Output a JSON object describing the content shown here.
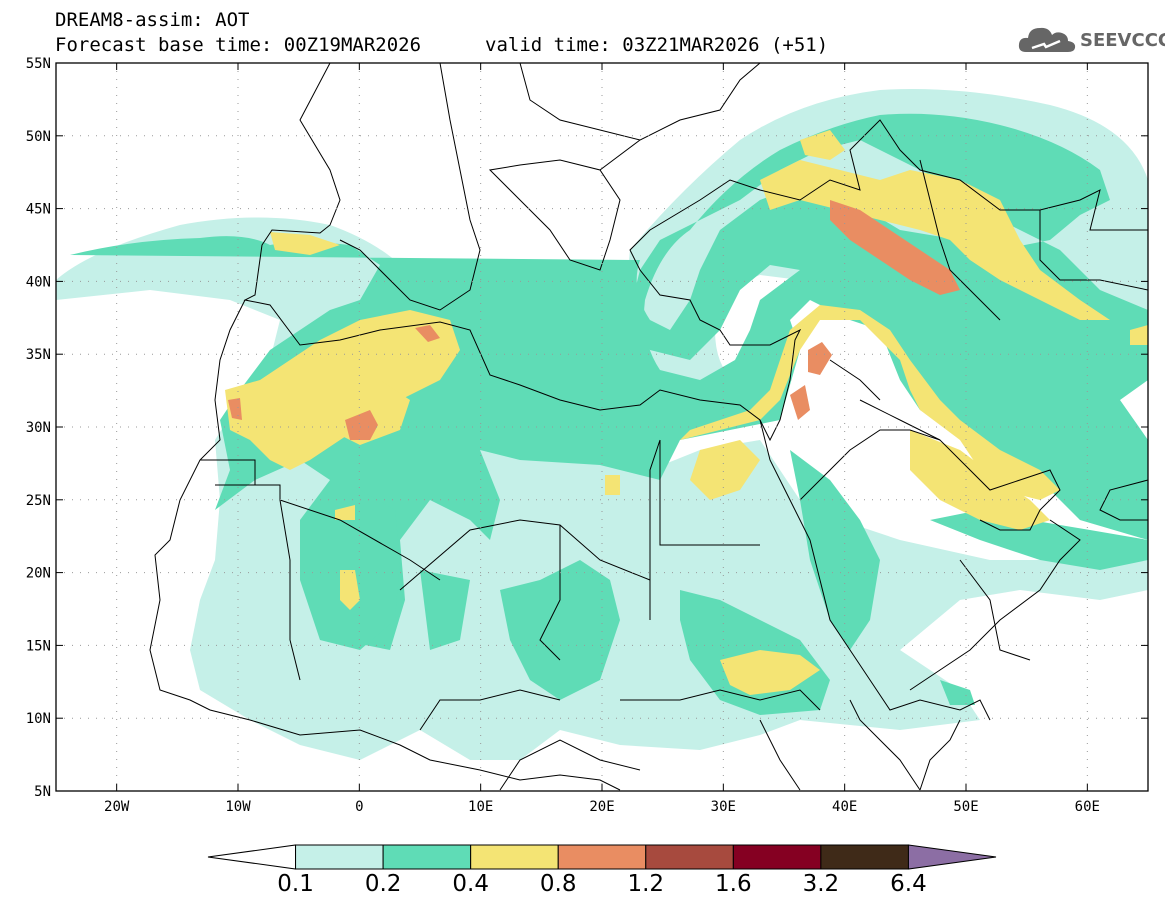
{
  "header": {
    "model_title": "DREAM8-assim: AOT",
    "base_time": "Forecast base time: 00Z19MAR2026",
    "valid_time": "valid time: 03Z21MAR2026 (+51)"
  },
  "logo": {
    "text": "SEEVCCC",
    "icon": "cloud-icon"
  },
  "map": {
    "lon_range": [
      -25,
      65
    ],
    "lat_range": [
      5,
      55
    ],
    "lon_ticks": [
      {
        "value": -20,
        "label": "20W"
      },
      {
        "value": -10,
        "label": "10W"
      },
      {
        "value": 0,
        "label": "0"
      },
      {
        "value": 10,
        "label": "10E"
      },
      {
        "value": 20,
        "label": "20E"
      },
      {
        "value": 30,
        "label": "30E"
      },
      {
        "value": 40,
        "label": "40E"
      },
      {
        "value": 50,
        "label": "50E"
      },
      {
        "value": 60,
        "label": "60E"
      }
    ],
    "lat_ticks": [
      {
        "value": 5,
        "label": "5N"
      },
      {
        "value": 10,
        "label": "10N"
      },
      {
        "value": 15,
        "label": "15N"
      },
      {
        "value": 20,
        "label": "20N"
      },
      {
        "value": 25,
        "label": "25N"
      },
      {
        "value": 30,
        "label": "30N"
      },
      {
        "value": 35,
        "label": "35N"
      },
      {
        "value": 40,
        "label": "40N"
      },
      {
        "value": 45,
        "label": "45N"
      },
      {
        "value": 50,
        "label": "50N"
      },
      {
        "value": 55,
        "label": "55N"
      }
    ],
    "grid": true
  },
  "colorbar": {
    "levels": [
      "0.1",
      "0.2",
      "0.4",
      "0.8",
      "1.2",
      "1.6",
      "3.2",
      "6.4"
    ],
    "colors": [
      "#ffffff",
      "#c5f0e8",
      "#5fdcb6",
      "#f4e474",
      "#e98d62",
      "#a74a3e",
      "#850022",
      "#3f2a18",
      "#8c6ea4"
    ]
  }
}
